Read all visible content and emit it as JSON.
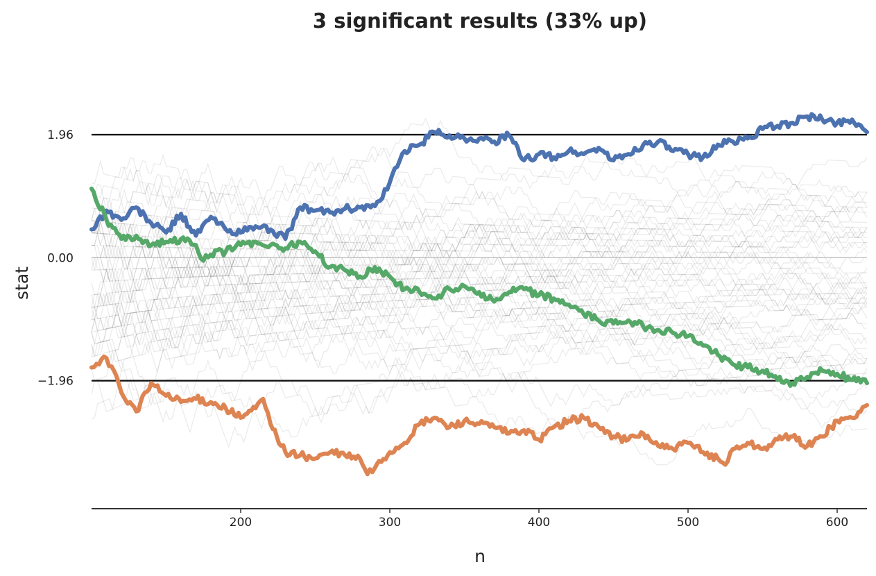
{
  "chart_data": {
    "type": "line",
    "title": "3 significant results (33% up)",
    "xlabel": "n",
    "ylabel": "stat",
    "xlim": [
      100,
      620
    ],
    "ylim": [
      -4.0,
      3.0
    ],
    "x_ticks": [
      200,
      300,
      400,
      500,
      600
    ],
    "y_ticks": [
      1.96,
      0.0,
      -1.96
    ],
    "y_tick_labels": [
      "1.96",
      "0.00",
      "−1.96"
    ],
    "reference_lines": [
      1.96,
      -1.96
    ],
    "zero_line": 0.0,
    "background_walks": 50,
    "series": [
      {
        "color": "#4c72b0",
        "x": [
          100,
          110,
          120,
          130,
          140,
          150,
          160,
          170,
          180,
          190,
          200,
          210,
          220,
          230,
          240,
          250,
          260,
          270,
          280,
          290,
          295,
          300,
          305,
          310,
          320,
          330,
          340,
          350,
          360,
          370,
          380,
          390,
          400,
          410,
          420,
          430,
          440,
          450,
          460,
          470,
          480,
          490,
          500,
          510,
          520,
          530,
          540,
          550,
          560,
          570,
          580,
          590,
          600,
          610,
          620
        ],
        "y": [
          0.45,
          0.75,
          0.6,
          0.8,
          0.55,
          0.4,
          0.7,
          0.35,
          0.65,
          0.45,
          0.4,
          0.5,
          0.45,
          0.3,
          0.8,
          0.75,
          0.72,
          0.78,
          0.8,
          0.82,
          0.95,
          1.2,
          1.45,
          1.7,
          1.8,
          2.0,
          1.95,
          1.9,
          1.9,
          1.85,
          1.95,
          1.55,
          1.65,
          1.6,
          1.7,
          1.65,
          1.75,
          1.55,
          1.65,
          1.8,
          1.85,
          1.7,
          1.65,
          1.6,
          1.8,
          1.85,
          1.9,
          2.05,
          2.1,
          2.15,
          2.25,
          2.2,
          2.15,
          2.2,
          2.0
        ]
      },
      {
        "color": "#dd8452",
        "x": [
          100,
          105,
          110,
          115,
          120,
          130,
          140,
          150,
          160,
          170,
          180,
          190,
          200,
          210,
          215,
          220,
          230,
          240,
          250,
          260,
          270,
          280,
          285,
          290,
          300,
          310,
          320,
          330,
          340,
          350,
          360,
          370,
          380,
          390,
          400,
          410,
          420,
          430,
          440,
          450,
          460,
          470,
          480,
          490,
          500,
          510,
          520,
          525,
          530,
          540,
          550,
          560,
          570,
          580,
          590,
          600,
          610,
          620
        ],
        "y": [
          -1.75,
          -1.7,
          -1.6,
          -1.8,
          -2.15,
          -2.45,
          -2.0,
          -2.2,
          -2.3,
          -2.25,
          -2.3,
          -2.4,
          -2.55,
          -2.4,
          -2.25,
          -2.65,
          -3.1,
          -3.15,
          -3.2,
          -3.1,
          -3.15,
          -3.2,
          -3.45,
          -3.35,
          -3.1,
          -2.95,
          -2.65,
          -2.55,
          -2.7,
          -2.6,
          -2.65,
          -2.7,
          -2.8,
          -2.75,
          -2.9,
          -2.7,
          -2.6,
          -2.55,
          -2.7,
          -2.85,
          -2.9,
          -2.8,
          -3.0,
          -3.05,
          -2.95,
          -3.1,
          -3.2,
          -3.3,
          -3.05,
          -2.95,
          -3.05,
          -2.9,
          -2.85,
          -3.0,
          -2.85,
          -2.6,
          -2.55,
          -2.35
        ]
      },
      {
        "color": "#55a868",
        "x": [
          100,
          110,
          120,
          130,
          140,
          150,
          160,
          170,
          175,
          180,
          190,
          200,
          210,
          220,
          230,
          240,
          250,
          260,
          270,
          280,
          290,
          300,
          310,
          320,
          330,
          340,
          350,
          360,
          370,
          380,
          390,
          400,
          410,
          420,
          430,
          440,
          450,
          460,
          470,
          480,
          490,
          500,
          510,
          520,
          530,
          540,
          550,
          560,
          570,
          580,
          590,
          600,
          610,
          620
        ],
        "y": [
          1.1,
          0.6,
          0.3,
          0.35,
          0.2,
          0.25,
          0.3,
          0.2,
          -0.05,
          0.05,
          0.1,
          0.2,
          0.25,
          0.2,
          0.15,
          0.25,
          0.1,
          -0.15,
          -0.2,
          -0.3,
          -0.15,
          -0.3,
          -0.5,
          -0.55,
          -0.65,
          -0.5,
          -0.45,
          -0.55,
          -0.7,
          -0.55,
          -0.5,
          -0.6,
          -0.65,
          -0.75,
          -0.9,
          -1.0,
          -1.05,
          -1.0,
          -1.1,
          -1.15,
          -1.2,
          -1.25,
          -1.4,
          -1.55,
          -1.7,
          -1.75,
          -1.8,
          -1.95,
          -2.0,
          -1.9,
          -1.8,
          -1.85,
          -1.95,
          -2.0
        ]
      }
    ]
  }
}
